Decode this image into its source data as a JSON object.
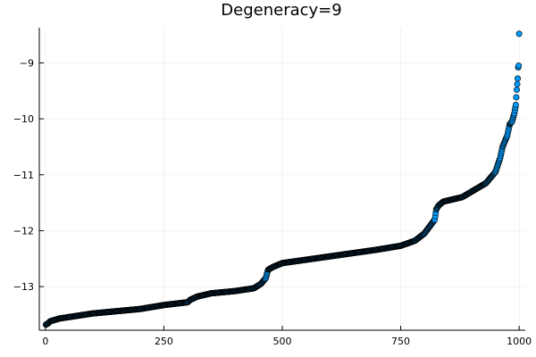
{
  "chart_data": {
    "type": "scatter",
    "title": "Degeneracy=9",
    "xlabel": "",
    "ylabel": "",
    "xlim": [
      -13,
      1013
    ],
    "ylim": [
      -13.78,
      -8.37
    ],
    "xticks": [
      0,
      250,
      500,
      750,
      1000
    ],
    "xtick_labels": [
      "0",
      "250",
      "500",
      "750",
      "1000"
    ],
    "yticks": [
      -9,
      -10,
      -11,
      -12,
      -13
    ],
    "ytick_labels": [
      "−9",
      "−10",
      "−11",
      "−12",
      "−13"
    ],
    "grid": true,
    "legend": "none",
    "marker_color": "#009AFA",
    "marker_stroke": "#000000",
    "n_points": 1000,
    "curve_x": [
      1,
      5,
      10,
      30,
      100,
      200,
      250,
      300,
      305,
      320,
      350,
      400,
      440,
      455,
      465,
      470,
      480,
      500,
      550,
      600,
      650,
      700,
      750,
      780,
      800,
      815,
      822,
      825,
      830,
      840,
      880,
      900,
      930,
      950,
      960,
      965,
      970,
      975,
      980,
      985,
      990,
      993,
      995,
      997,
      998,
      999,
      1000
    ],
    "curve_y": [
      -13.68,
      -13.66,
      -13.62,
      -13.57,
      -13.48,
      -13.4,
      -13.33,
      -13.28,
      -13.24,
      -13.18,
      -13.12,
      -13.08,
      -13.03,
      -12.95,
      -12.85,
      -12.7,
      -12.65,
      -12.58,
      -12.52,
      -12.46,
      -12.4,
      -12.34,
      -12.27,
      -12.18,
      -12.05,
      -11.88,
      -11.8,
      -11.62,
      -11.55,
      -11.48,
      -11.4,
      -11.3,
      -11.15,
      -10.95,
      -10.7,
      -10.5,
      -10.4,
      -10.3,
      -10.1,
      -10.05,
      -9.9,
      -9.75,
      -9.48,
      -9.28,
      -9.08,
      -9.05,
      -8.48
    ]
  }
}
